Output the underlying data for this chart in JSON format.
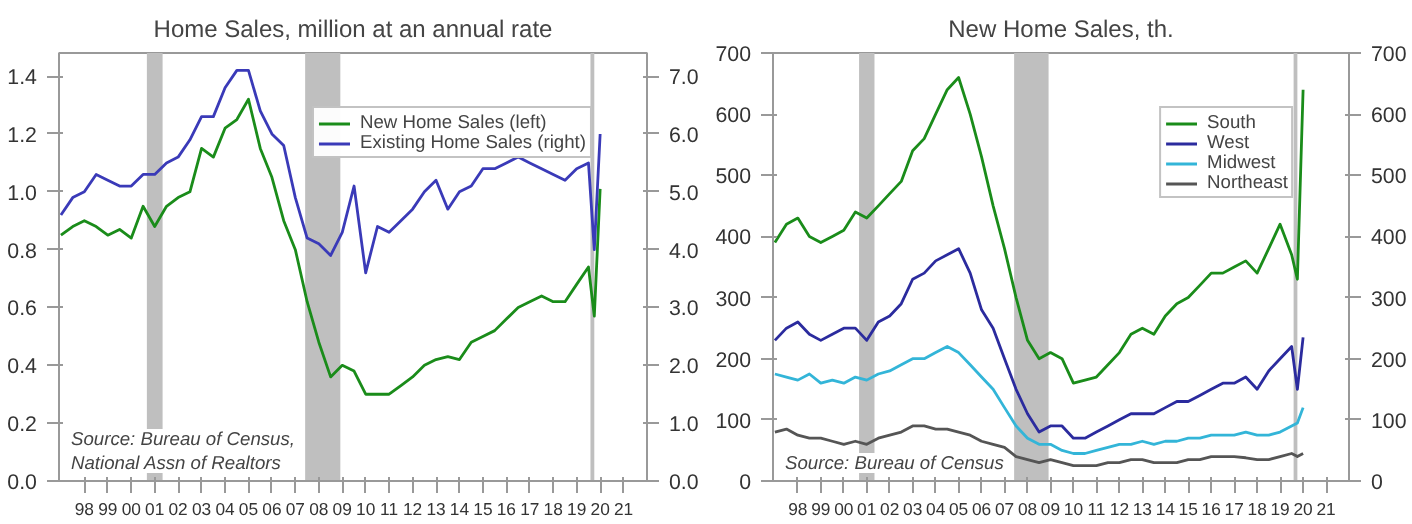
{
  "chart_data": [
    {
      "type": "line",
      "title": "Home Sales, million at an annual rate",
      "x": [
        "1997-07",
        "1998-01",
        "1998-07",
        "1999-01",
        "1999-07",
        "2000-01",
        "2000-07",
        "2001-01",
        "2001-07",
        "2002-01",
        "2002-07",
        "2003-01",
        "2003-07",
        "2004-01",
        "2004-07",
        "2005-01",
        "2005-07",
        "2006-01",
        "2006-07",
        "2007-01",
        "2007-07",
        "2008-01",
        "2008-07",
        "2009-01",
        "2009-07",
        "2010-01",
        "2010-07",
        "2011-01",
        "2011-07",
        "2012-01",
        "2012-07",
        "2013-01",
        "2013-07",
        "2014-01",
        "2014-07",
        "2015-01",
        "2015-07",
        "2016-01",
        "2016-07",
        "2017-01",
        "2017-07",
        "2018-01",
        "2018-07",
        "2019-01",
        "2019-07",
        "2020-01",
        "2020-04",
        "2020-07"
      ],
      "series": [
        {
          "name": "New Home Sales (left)",
          "color": "#1a8c1a",
          "values": [
            0.85,
            0.88,
            0.9,
            0.88,
            0.85,
            0.87,
            0.84,
            0.95,
            0.88,
            0.95,
            0.98,
            1.0,
            1.15,
            1.12,
            1.22,
            1.25,
            1.32,
            1.15,
            1.05,
            0.9,
            0.8,
            0.62,
            0.48,
            0.36,
            0.4,
            0.38,
            0.3,
            0.3,
            0.3,
            0.33,
            0.36,
            0.4,
            0.42,
            0.43,
            0.42,
            0.48,
            0.5,
            0.52,
            0.56,
            0.6,
            0.62,
            0.64,
            0.62,
            0.62,
            0.68,
            0.74,
            0.57,
            1.01
          ]
        },
        {
          "name": "Existing Home Sales (right)",
          "color": "#3a3ab8",
          "axis": "y2",
          "values": [
            4.6,
            4.9,
            5.0,
            5.3,
            5.2,
            5.1,
            5.1,
            5.3,
            5.3,
            5.5,
            5.6,
            5.9,
            6.3,
            6.3,
            6.8,
            7.1,
            7.1,
            6.4,
            6.0,
            5.8,
            4.9,
            4.2,
            4.1,
            3.9,
            4.3,
            5.1,
            3.6,
            4.4,
            4.3,
            4.5,
            4.7,
            5.0,
            5.2,
            4.7,
            5.0,
            5.1,
            5.4,
            5.4,
            5.5,
            5.6,
            5.5,
            5.4,
            5.3,
            5.2,
            5.4,
            5.5,
            4.0,
            6.0
          ]
        }
      ],
      "xlim": [
        "1997-06",
        "2022-07"
      ],
      "xticks": [
        {
          "value": "1998-07",
          "label": "98"
        },
        {
          "value": "1999-07",
          "label": "99"
        },
        {
          "value": "2000-07",
          "label": "00"
        },
        {
          "value": "2001-07",
          "label": "01"
        },
        {
          "value": "2002-07",
          "label": "02"
        },
        {
          "value": "2003-07",
          "label": "03"
        },
        {
          "value": "2004-07",
          "label": "04"
        },
        {
          "value": "2005-07",
          "label": "05"
        },
        {
          "value": "2006-07",
          "label": "06"
        },
        {
          "value": "2007-07",
          "label": "07"
        },
        {
          "value": "2008-07",
          "label": "08"
        },
        {
          "value": "2009-07",
          "label": "09"
        },
        {
          "value": "2010-07",
          "label": "10"
        },
        {
          "value": "2011-07",
          "label": "11"
        },
        {
          "value": "2012-07",
          "label": "12"
        },
        {
          "value": "2013-07",
          "label": "13"
        },
        {
          "value": "2014-07",
          "label": "14"
        },
        {
          "value": "2015-07",
          "label": "15"
        },
        {
          "value": "2016-07",
          "label": "16"
        },
        {
          "value": "2017-07",
          "label": "17"
        },
        {
          "value": "2018-07",
          "label": "18"
        },
        {
          "value": "2019-07",
          "label": "19"
        },
        {
          "value": "2020-07",
          "label": "20"
        },
        {
          "value": "2021-07",
          "label": "21"
        }
      ],
      "ylim": [
        0,
        1.48
      ],
      "yticks": [
        {
          "value": 0,
          "label": "0.0"
        },
        0.2,
        0.4,
        0.6,
        0.8,
        {
          "value": 1,
          "label": "1.0"
        },
        1.2,
        1.4
      ],
      "y2lim": [
        0,
        7.4
      ],
      "y2ticks": [
        {
          "value": 0,
          "label": "0.0"
        },
        {
          "value": 1,
          "label": "1.0"
        },
        {
          "value": 2,
          "label": "2.0"
        },
        {
          "value": 3,
          "label": "3.0"
        },
        {
          "value": 4,
          "label": "4.0"
        },
        {
          "value": 5,
          "label": "5.0"
        },
        {
          "value": 6,
          "label": "6.0"
        },
        {
          "value": 7,
          "label": "7.0"
        }
      ],
      "bands": [
        {
          "axis": "x",
          "from": "2001-03",
          "to": "2001-11",
          "color": "#bfbfbf"
        },
        {
          "axis": "x",
          "from": "2007-12",
          "to": "2009-06",
          "color": "#bfbfbf"
        },
        {
          "axis": "x",
          "from": "2020-02",
          "to": "2020-04",
          "color": "#bfbfbf"
        }
      ],
      "annotations": [
        "Source: Bureau of Census,\nNational Assn of Realtors"
      ],
      "grid": false,
      "legend": "top right"
    },
    {
      "type": "line",
      "title": "New Home Sales, th.",
      "x": [
        "1997-07",
        "1998-01",
        "1998-07",
        "1999-01",
        "1999-07",
        "2000-01",
        "2000-07",
        "2001-01",
        "2001-07",
        "2002-01",
        "2002-07",
        "2003-01",
        "2003-07",
        "2004-01",
        "2004-07",
        "2005-01",
        "2005-07",
        "2006-01",
        "2006-07",
        "2007-01",
        "2007-07",
        "2008-01",
        "2008-07",
        "2009-01",
        "2009-07",
        "2010-01",
        "2010-07",
        "2011-01",
        "2011-07",
        "2012-01",
        "2012-07",
        "2013-01",
        "2013-07",
        "2014-01",
        "2014-07",
        "2015-01",
        "2015-07",
        "2016-01",
        "2016-07",
        "2017-01",
        "2017-07",
        "2018-01",
        "2018-07",
        "2019-01",
        "2019-07",
        "2020-01",
        "2020-04",
        "2020-07"
      ],
      "series": [
        {
          "name": "South",
          "color": "#1a8c1a",
          "values": [
            390,
            420,
            430,
            400,
            390,
            400,
            410,
            440,
            430,
            450,
            470,
            490,
            540,
            560,
            600,
            640,
            660,
            600,
            530,
            450,
            380,
            300,
            230,
            200,
            210,
            200,
            160,
            165,
            170,
            190,
            210,
            240,
            250,
            240,
            270,
            290,
            300,
            320,
            340,
            340,
            350,
            360,
            340,
            380,
            420,
            370,
            330,
            640
          ]
        },
        {
          "name": "West",
          "color": "#2b2b9e",
          "values": [
            230,
            250,
            260,
            240,
            230,
            240,
            250,
            250,
            230,
            260,
            270,
            290,
            330,
            340,
            360,
            370,
            380,
            340,
            280,
            250,
            200,
            150,
            110,
            80,
            90,
            90,
            70,
            70,
            80,
            90,
            100,
            110,
            110,
            110,
            120,
            130,
            130,
            140,
            150,
            160,
            160,
            170,
            150,
            180,
            200,
            220,
            150,
            235
          ]
        },
        {
          "name": "Midwest",
          "color": "#33b5d8",
          "values": [
            175,
            170,
            165,
            175,
            160,
            165,
            160,
            170,
            165,
            175,
            180,
            190,
            200,
            200,
            210,
            220,
            210,
            190,
            170,
            150,
            120,
            90,
            70,
            60,
            60,
            50,
            45,
            45,
            50,
            55,
            60,
            60,
            65,
            60,
            65,
            65,
            70,
            70,
            75,
            75,
            75,
            80,
            75,
            75,
            80,
            90,
            95,
            120
          ]
        },
        {
          "name": "Northeast",
          "color": "#555555",
          "values": [
            80,
            85,
            75,
            70,
            70,
            65,
            60,
            65,
            60,
            70,
            75,
            80,
            90,
            90,
            85,
            85,
            80,
            75,
            65,
            60,
            55,
            40,
            35,
            30,
            35,
            30,
            25,
            25,
            25,
            30,
            30,
            35,
            35,
            30,
            30,
            30,
            35,
            35,
            40,
            40,
            40,
            38,
            35,
            35,
            40,
            45,
            40,
            45
          ]
        }
      ],
      "xlim": [
        "1997-06",
        "2022-07"
      ],
      "xticks": [
        {
          "value": "1998-07",
          "label": "98"
        },
        {
          "value": "1999-07",
          "label": "99"
        },
        {
          "value": "2000-07",
          "label": "00"
        },
        {
          "value": "2001-07",
          "label": "01"
        },
        {
          "value": "2002-07",
          "label": "02"
        },
        {
          "value": "2003-07",
          "label": "03"
        },
        {
          "value": "2004-07",
          "label": "04"
        },
        {
          "value": "2005-07",
          "label": "05"
        },
        {
          "value": "2006-07",
          "label": "06"
        },
        {
          "value": "2007-07",
          "label": "07"
        },
        {
          "value": "2008-07",
          "label": "08"
        },
        {
          "value": "2009-07",
          "label": "09"
        },
        {
          "value": "2010-07",
          "label": "10"
        },
        {
          "value": "2011-07",
          "label": "11"
        },
        {
          "value": "2012-07",
          "label": "12"
        },
        {
          "value": "2013-07",
          "label": "13"
        },
        {
          "value": "2014-07",
          "label": "14"
        },
        {
          "value": "2015-07",
          "label": "15"
        },
        {
          "value": "2016-07",
          "label": "16"
        },
        {
          "value": "2017-07",
          "label": "17"
        },
        {
          "value": "2018-07",
          "label": "18"
        },
        {
          "value": "2019-07",
          "label": "19"
        },
        {
          "value": "2020-07",
          "label": "20"
        },
        {
          "value": "2021-07",
          "label": "21"
        }
      ],
      "ylim": [
        0,
        700
      ],
      "yticks": [
        0,
        100,
        200,
        300,
        400,
        500,
        600,
        700
      ],
      "y2lim": [
        0,
        700
      ],
      "y2ticks": [
        0,
        100,
        200,
        300,
        400,
        500,
        600,
        700
      ],
      "bands": [
        {
          "axis": "x",
          "from": "2001-03",
          "to": "2001-11",
          "color": "#bfbfbf"
        },
        {
          "axis": "x",
          "from": "2007-12",
          "to": "2009-06",
          "color": "#bfbfbf"
        },
        {
          "axis": "x",
          "from": "2020-02",
          "to": "2020-04",
          "color": "#bfbfbf"
        }
      ],
      "annotations": [
        "Source: Bureau of Census"
      ],
      "grid": false,
      "legend": "top right"
    }
  ]
}
